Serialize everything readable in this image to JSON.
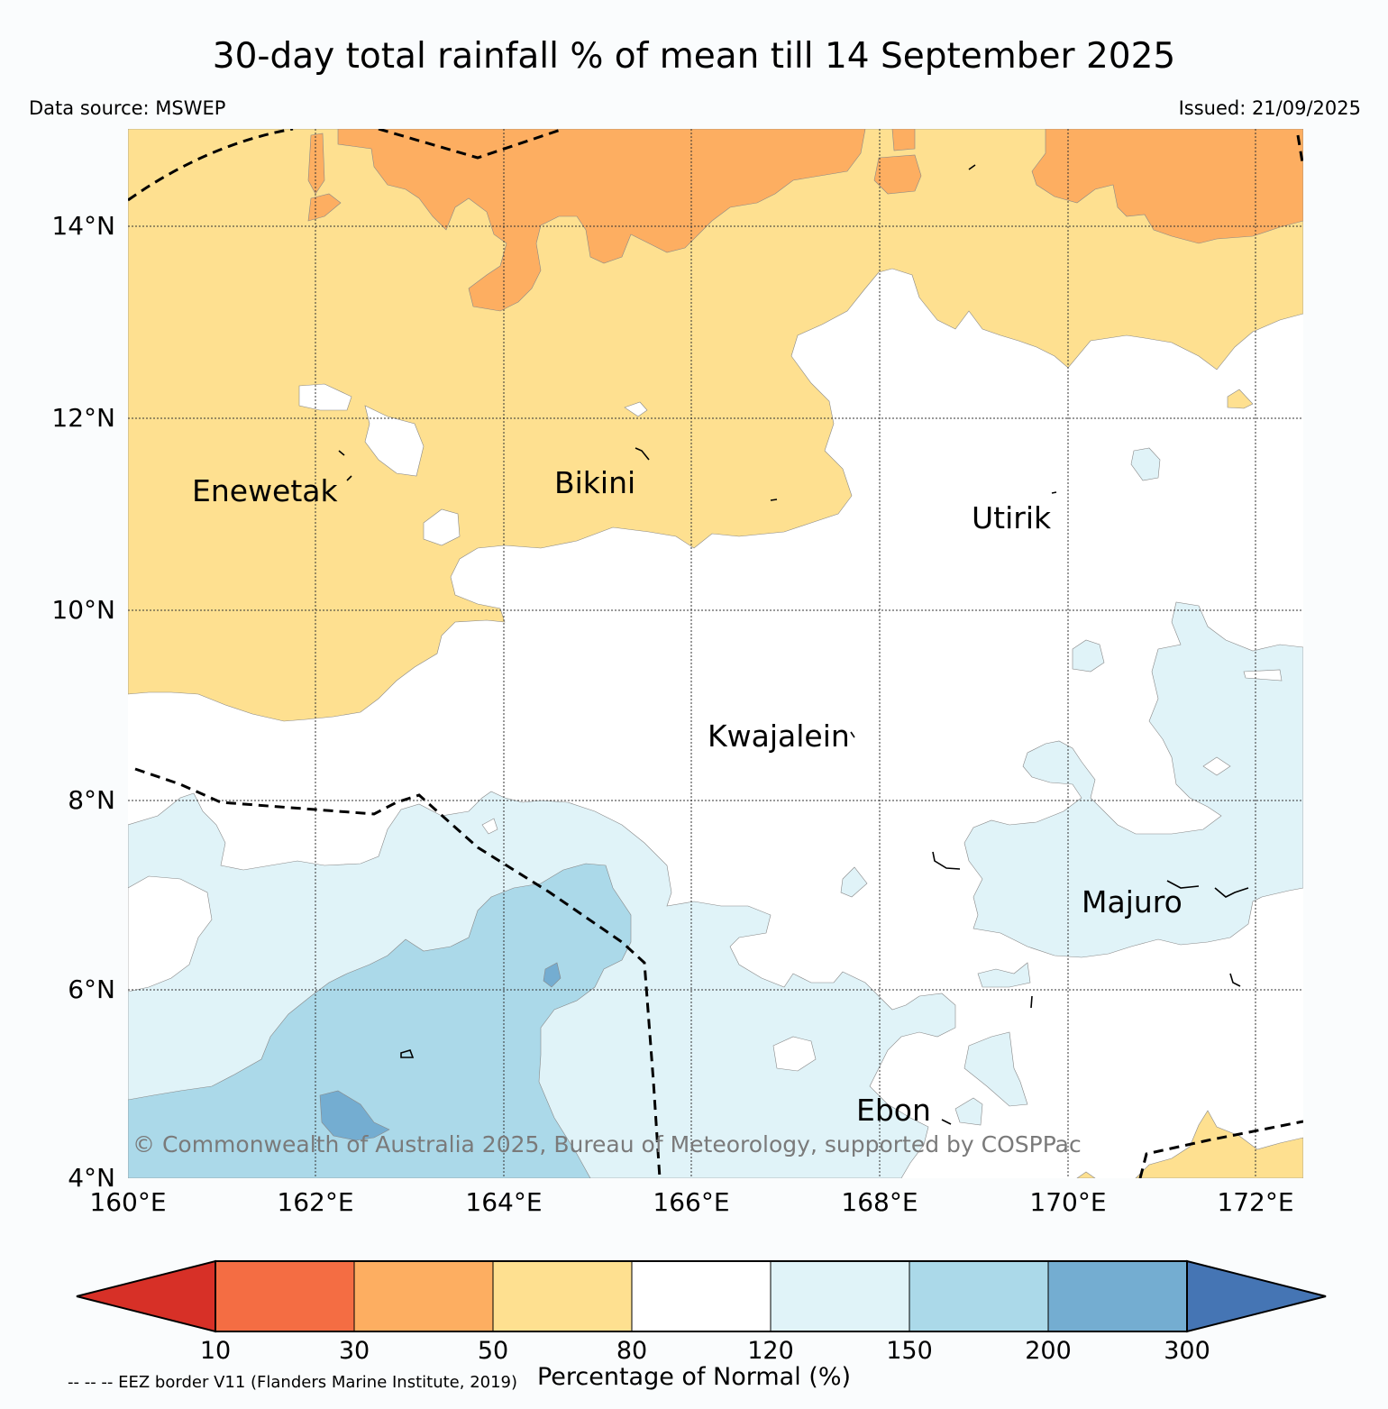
{
  "title": "30-day total rainfall % of mean till 14 September 2025",
  "data_source": "Data source: MSWEP",
  "issued": "Issued: 21/09/2025",
  "copyright": "© Commonwealth of Australia 2025, Bureau of Meteorology, supported by COSPPac",
  "eez_note": "-- -- -- EEZ border V11 (Flanders Marine Institute, 2019)",
  "axes": {
    "lat_ticks": [
      "14°N",
      "12°N",
      "10°N",
      "8°N",
      "6°N",
      "4°N"
    ],
    "lon_ticks": [
      "160°E",
      "162°E",
      "164°E",
      "166°E",
      "168°E",
      "170°E",
      "172°E"
    ]
  },
  "places": [
    "Enewetak",
    "Bikini",
    "Utirik",
    "Kwajalein",
    "Majuro",
    "Ebon"
  ],
  "colorbar": {
    "label": "Percentage of Normal (%)",
    "ticks": [
      "10",
      "30",
      "50",
      "80",
      "120",
      "150",
      "200",
      "300"
    ],
    "colors": [
      "#d73027",
      "#f46d43",
      "#fdae61",
      "#fee090",
      "#ffffff",
      "#e0f3f8",
      "#abd9e9",
      "#74add1",
      "#4575b4"
    ]
  }
}
